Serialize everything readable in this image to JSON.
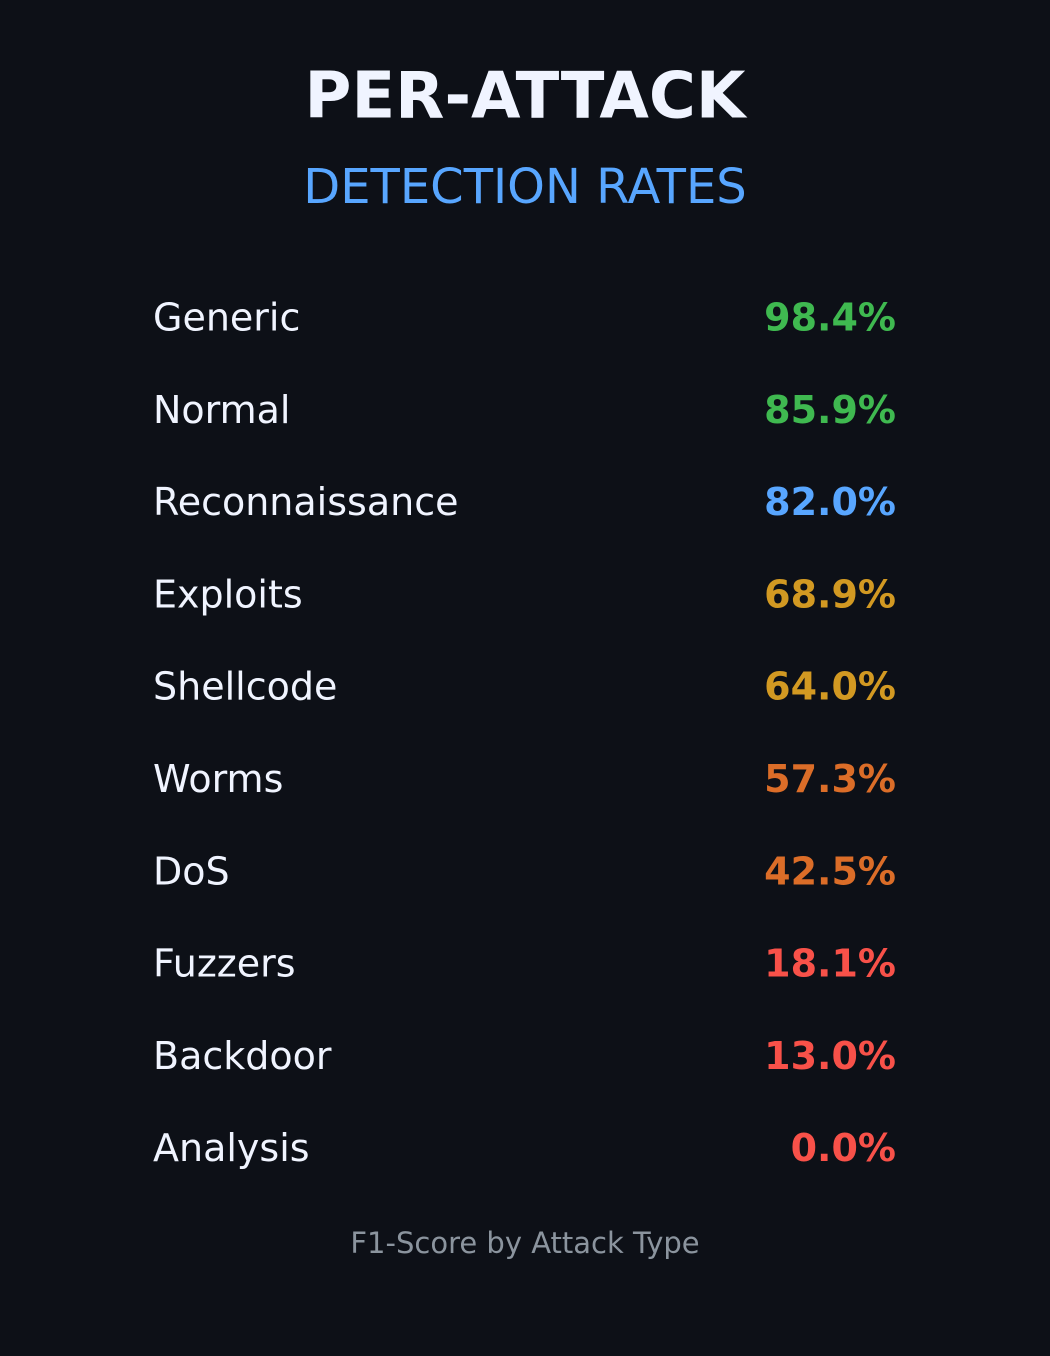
{
  "header": {
    "title": "PER-ATTACK",
    "subtitle": "DETECTION RATES"
  },
  "rows": [
    {
      "label": "Generic",
      "value": "98.4%",
      "color": "#3fb950"
    },
    {
      "label": "Normal",
      "value": "85.9%",
      "color": "#3fb950"
    },
    {
      "label": "Reconnaissance",
      "value": "82.0%",
      "color": "#58a6ff"
    },
    {
      "label": "Exploits",
      "value": "68.9%",
      "color": "#d29922"
    },
    {
      "label": "Shellcode",
      "value": "64.0%",
      "color": "#d29922"
    },
    {
      "label": "Worms",
      "value": "57.3%",
      "color": "#db6d28"
    },
    {
      "label": "DoS",
      "value": "42.5%",
      "color": "#db6d28"
    },
    {
      "label": "Fuzzers",
      "value": "18.1%",
      "color": "#f85149"
    },
    {
      "label": "Backdoor",
      "value": "13.0%",
      "color": "#f85149"
    },
    {
      "label": "Analysis",
      "value": "0.0%",
      "color": "#f85149"
    }
  ],
  "footer": "F1-Score by Attack Type"
}
